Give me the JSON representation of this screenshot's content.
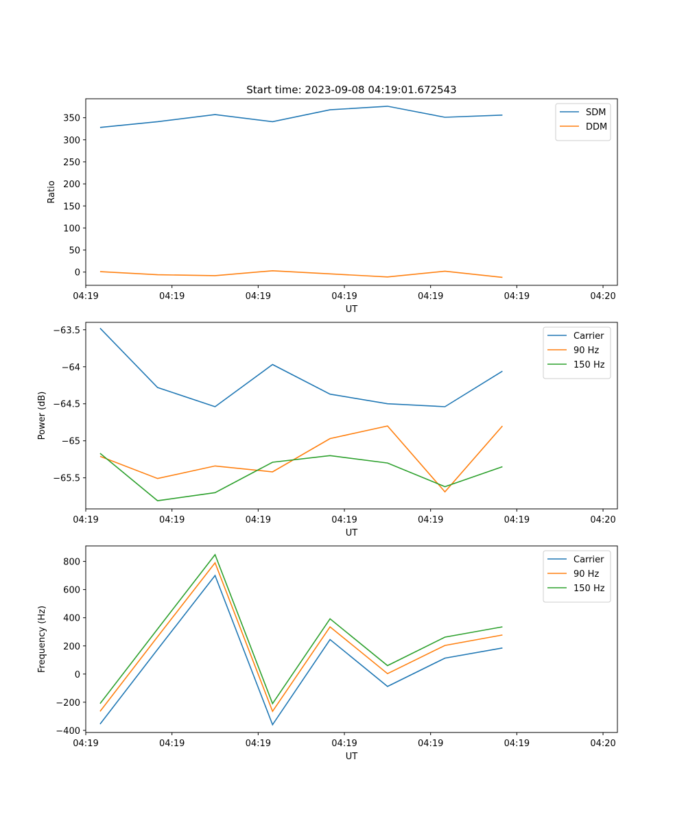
{
  "figure_title": "Start time: 2023-09-08 04:19:01.672543",
  "colors": {
    "blue": "#1f77b4",
    "orange": "#ff7f0e",
    "green": "#2ca02c"
  },
  "chart_data": [
    {
      "type": "line",
      "title": "Start time: 2023-09-08 04:19:01.672543",
      "xlabel": "UT",
      "ylabel": "Ratio",
      "x_tick_labels": [
        "04:19",
        "04:19",
        "04:19",
        "04:19",
        "04:19",
        "04:19",
        "04:20"
      ],
      "ylim": [
        -30,
        393
      ],
      "y_ticks": [
        0,
        50,
        100,
        150,
        200,
        250,
        300,
        350
      ],
      "legend_position": "top-right",
      "series": [
        {
          "name": "SDM",
          "color": "blue",
          "x": [
            1,
            2,
            3,
            4,
            5,
            6,
            7,
            8
          ],
          "values": [
            328,
            341,
            357,
            341,
            368,
            376,
            351,
            356
          ]
        },
        {
          "name": "DDM",
          "color": "orange",
          "x": [
            1,
            2,
            3,
            4,
            5,
            6,
            7,
            8
          ],
          "values": [
            1,
            -6,
            -8,
            3,
            -4,
            -11,
            2,
            -12
          ]
        }
      ]
    },
    {
      "type": "line",
      "title": "",
      "xlabel": "UT",
      "ylabel": "Power (dB)",
      "x_tick_labels": [
        "04:19",
        "04:19",
        "04:19",
        "04:19",
        "04:19",
        "04:19",
        "04:20"
      ],
      "ylim": [
        -65.92,
        -63.4
      ],
      "y_ticks": [
        -63.5,
        -64.0,
        -64.5,
        -65.0,
        -65.5
      ],
      "legend_position": "top-right",
      "series": [
        {
          "name": "Carrier",
          "color": "blue",
          "x": [
            1,
            2,
            3,
            4,
            5,
            6,
            7,
            8
          ],
          "values": [
            -63.48,
            -64.28,
            -64.54,
            -63.97,
            -64.37,
            -64.5,
            -64.54,
            -64.06
          ]
        },
        {
          "name": "90 Hz",
          "color": "orange",
          "x": [
            1,
            2,
            3,
            4,
            5,
            6,
            7,
            8
          ],
          "values": [
            -65.21,
            -65.51,
            -65.34,
            -65.42,
            -64.97,
            -64.8,
            -65.69,
            -64.8
          ]
        },
        {
          "name": "150 Hz",
          "color": "green",
          "x": [
            1,
            2,
            3,
            4,
            5,
            6,
            7,
            8
          ],
          "values": [
            -65.17,
            -65.81,
            -65.7,
            -65.29,
            -65.2,
            -65.3,
            -65.62,
            -65.35
          ]
        }
      ]
    },
    {
      "type": "line",
      "title": "",
      "xlabel": "UT",
      "ylabel": "Frequency (Hz)",
      "x_tick_labels": [
        "04:19",
        "04:19",
        "04:19",
        "04:19",
        "04:19",
        "04:19",
        "04:20"
      ],
      "ylim": [
        -415,
        910
      ],
      "y_ticks": [
        -400,
        -200,
        0,
        200,
        400,
        600,
        800
      ],
      "legend_position": "top-right",
      "series": [
        {
          "name": "Carrier",
          "color": "blue",
          "x": [
            1,
            2,
            3,
            4,
            5,
            6,
            7,
            8
          ],
          "values": [
            -355,
            175,
            700,
            -360,
            245,
            -88,
            113,
            185
          ]
        },
        {
          "name": "90 Hz",
          "color": "orange",
          "x": [
            1,
            2,
            3,
            4,
            5,
            6,
            7,
            8
          ],
          "values": [
            -265,
            265,
            790,
            -265,
            335,
            3,
            203,
            277
          ]
        },
        {
          "name": "150 Hz",
          "color": "green",
          "x": [
            1,
            2,
            3,
            4,
            5,
            6,
            7,
            8
          ],
          "values": [
            -210,
            320,
            848,
            -210,
            392,
            60,
            262,
            335
          ]
        }
      ]
    }
  ]
}
